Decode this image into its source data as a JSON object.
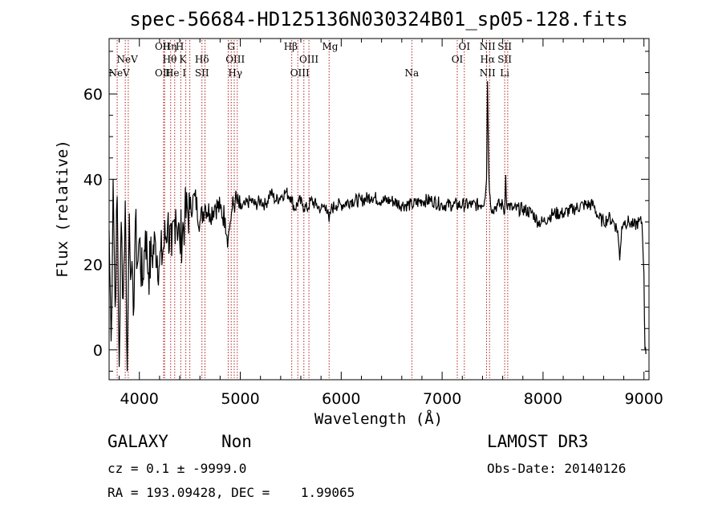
{
  "chart_data": {
    "type": "line",
    "title": "spec-56684-HD125136N030324B01_sp05-128.fits",
    "xlabel": "Wavelength (Å)",
    "ylabel": "Flux (relative)",
    "xlim": [
      3700,
      9050
    ],
    "ylim": [
      -7,
      73
    ],
    "xticks": [
      4000,
      5000,
      6000,
      7000,
      8000,
      9000
    ],
    "yticks": [
      0,
      20,
      40,
      60
    ],
    "series": [
      {
        "name": "flux",
        "x": [
          3700,
          3720,
          3740,
          3760,
          3780,
          3800,
          3820,
          3840,
          3860,
          3880,
          3900,
          3920,
          3940,
          3960,
          3980,
          4000,
          4030,
          4060,
          4090,
          4120,
          4160,
          4200,
          4240,
          4280,
          4320,
          4360,
          4400,
          4450,
          4500,
          4550,
          4600,
          4650,
          4700,
          4750,
          4800,
          4850,
          4880,
          4900,
          4920,
          4950,
          5000,
          5050,
          5100,
          5150,
          5200,
          5250,
          5300,
          5350,
          5400,
          5450,
          5500,
          5540,
          5580,
          5620,
          5660,
          5700,
          5750,
          5800,
          5850,
          5880,
          5900,
          5950,
          6000,
          6100,
          6200,
          6300,
          6400,
          6500,
          6600,
          6700,
          6800,
          6900,
          7000,
          7100,
          7200,
          7300,
          7380,
          7420,
          7440,
          7450,
          7460,
          7470,
          7480,
          7500,
          7550,
          7600,
          7620,
          7630,
          7640,
          7660,
          7700,
          7800,
          7900,
          7950,
          8000,
          8050,
          8100,
          8200,
          8300,
          8400,
          8500,
          8550,
          8600,
          8650,
          8700,
          8740,
          8760,
          8780,
          8800,
          8850,
          8900,
          8950,
          8980,
          9000,
          9010,
          9020
        ],
        "y": [
          28,
          2,
          40,
          10,
          36,
          -4,
          30,
          12,
          35,
          -5,
          32,
          18,
          8,
          30,
          20,
          26,
          15,
          28,
          18,
          22,
          25,
          20,
          24,
          30,
          22,
          33,
          25,
          31,
          33,
          36,
          30,
          34,
          32,
          34,
          33,
          31,
          26,
          30,
          33,
          35,
          33,
          34,
          35,
          34,
          35,
          34,
          37,
          35,
          36,
          37,
          36,
          33,
          35,
          34,
          33,
          35,
          34,
          33,
          34,
          30,
          33,
          34,
          34,
          35,
          35,
          36,
          35,
          35,
          34,
          34,
          35,
          35,
          34,
          34,
          34,
          34,
          34,
          35,
          40,
          63,
          45,
          37,
          34,
          33,
          34,
          34,
          32,
          41,
          34,
          34,
          33,
          33,
          32,
          30,
          30,
          31,
          32,
          32,
          33,
          34,
          34,
          31,
          30,
          31,
          30,
          28,
          21,
          29,
          30,
          30,
          29,
          30,
          30,
          18,
          0,
          -1
        ]
      }
    ],
    "line_annotations": [
      {
        "label": "NeV",
        "x": 3800,
        "row": 3
      },
      {
        "label": "NeV",
        "x": 3880,
        "row": 1
      },
      {
        "label": "OII",
        "x": 4230,
        "row": 0
      },
      {
        "label": "OII",
        "x": 4230,
        "row": 3
      },
      {
        "label": "Hη",
        "x": 4300,
        "row": 0
      },
      {
        "label": "Hθ",
        "x": 4300,
        "row": 1
      },
      {
        "label": "He I",
        "x": 4360,
        "row": 3
      },
      {
        "label": "H",
        "x": 4400,
        "row": 0
      },
      {
        "label": "K",
        "x": 4430,
        "row": 1
      },
      {
        "label": "Hδ",
        "x": 4620,
        "row": 1
      },
      {
        "label": "SII",
        "x": 4620,
        "row": 3
      },
      {
        "label": "G",
        "x": 4910,
        "row": 0
      },
      {
        "label": "OIII",
        "x": 4950,
        "row": 1
      },
      {
        "label": "Hγ",
        "x": 4950,
        "row": 3
      },
      {
        "label": "Hβ",
        "x": 5500,
        "row": 0
      },
      {
        "label": "OIII",
        "x": 5680,
        "row": 1
      },
      {
        "label": "OIII",
        "x": 5590,
        "row": 3
      },
      {
        "label": "Mg",
        "x": 5890,
        "row": 0
      },
      {
        "label": "Na",
        "x": 6700,
        "row": 3
      },
      {
        "label": "OI",
        "x": 7220,
        "row": 0
      },
      {
        "label": "OI",
        "x": 7150,
        "row": 1
      },
      {
        "label": "NII",
        "x": 7450,
        "row": 0
      },
      {
        "label": "Hα",
        "x": 7450,
        "row": 1
      },
      {
        "label": "NII",
        "x": 7450,
        "row": 3
      },
      {
        "label": "SII",
        "x": 7620,
        "row": 0
      },
      {
        "label": "SII",
        "x": 7620,
        "row": 1
      },
      {
        "label": "Li",
        "x": 7620,
        "row": 3
      }
    ],
    "dotted_lines_x": [
      3780,
      3860,
      3890,
      4240,
      4250,
      4310,
      4350,
      4410,
      4460,
      4500,
      4620,
      4650,
      4880,
      4910,
      4940,
      4970,
      5510,
      5570,
      5630,
      5680,
      5880,
      6700,
      7150,
      7220,
      7440,
      7470,
      7620,
      7650
    ]
  },
  "info": {
    "object_class": "GALAXY",
    "subclass": "Non",
    "survey": "LAMOST DR3",
    "cz_text": "cz = 0.1 ± -9999.0",
    "obs_date_text": "Obs-Date: 20140126",
    "radec_text": "RA = 193.09428, DEC =    1.99065"
  }
}
